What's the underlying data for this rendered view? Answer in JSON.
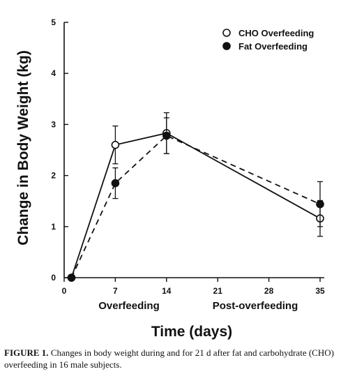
{
  "chart_data": {
    "type": "line",
    "xlabel": "Time (days)",
    "ylabel": "Change in Body Weight (kg)",
    "x": [
      1,
      7,
      14,
      35
    ],
    "xticks": [
      0,
      7,
      14,
      21,
      28,
      35
    ],
    "yticks": [
      0,
      1,
      2,
      3,
      4,
      5
    ],
    "xlim": [
      0,
      35
    ],
    "ylim": [
      0,
      5
    ],
    "period_labels": [
      "Overfeeding",
      "Post-overfeeding"
    ],
    "legend_position": "top-right",
    "grid": false,
    "series": [
      {
        "name": "CHO Overfeeding",
        "marker": "open-circle",
        "line": "solid",
        "values": [
          0,
          2.6,
          2.83,
          1.16
        ],
        "errors": [
          0,
          0.37,
          0.4,
          0.35
        ]
      },
      {
        "name": "Fat Overfeeding",
        "marker": "filled-circle",
        "line": "dashed",
        "values": [
          0,
          1.85,
          2.78,
          1.44
        ],
        "errors": [
          0,
          0.3,
          0.35,
          0.44
        ]
      }
    ]
  },
  "caption": {
    "label": "FIGURE 1.",
    "text": " Changes in body weight during and for 21 d after fat and carbohydrate (CHO) overfeeding in 16 male subjects."
  }
}
